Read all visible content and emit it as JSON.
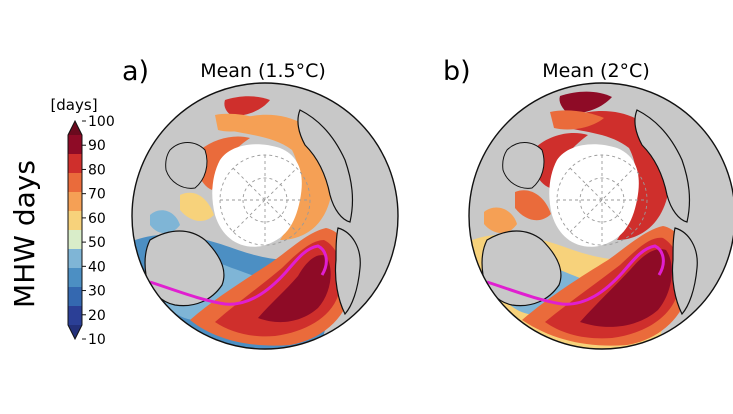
{
  "colorbar": {
    "title": "MHW days",
    "unit": "[days]",
    "ticks": [
      10,
      20,
      30,
      40,
      50,
      60,
      70,
      80,
      90,
      100
    ],
    "min": 10,
    "max": 100,
    "extend": "both",
    "colors": [
      "#2b3f96",
      "#3468b0",
      "#4c8fc3",
      "#7fb5d6",
      "#d9edc9",
      "#f7d27b",
      "#f5a055",
      "#ea6b3b",
      "#cf2f2c",
      "#8e0b26"
    ],
    "under_color": "#23307a",
    "over_color": "#6b0a1e"
  },
  "panels": [
    {
      "label": "a)",
      "title": "Mean (1.5°C)",
      "scenario": "1.5°C"
    },
    {
      "label": "b)",
      "title": "Mean (2°C)",
      "scenario": "2°C"
    }
  ],
  "map_style": {
    "projection": "north polar stereographic",
    "land_color": "#c8c8c8",
    "no_data_color": "#ffffff",
    "contour_color": "#e01fd0",
    "gridline_color": "#9a9a9a"
  }
}
